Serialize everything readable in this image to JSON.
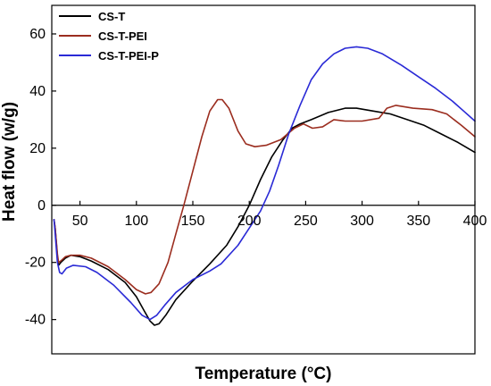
{
  "chart_data": {
    "type": "line",
    "xlabel": "Temperature (°C)",
    "ylabel": "Heat flow (w/g)",
    "xlim": [
      25,
      400
    ],
    "ylim": [
      -52,
      70
    ],
    "x_ticks": [
      50,
      100,
      150,
      200,
      250,
      300,
      350,
      400
    ],
    "y_ticks": [
      -40,
      -20,
      0,
      20,
      40,
      60
    ],
    "legend_position": "top-left",
    "grid": false,
    "series": [
      {
        "name": "CS-T",
        "color": "#000000",
        "points": [
          [
            27,
            -5
          ],
          [
            28,
            -8
          ],
          [
            30,
            -18
          ],
          [
            31,
            -21
          ],
          [
            33,
            -20
          ],
          [
            37,
            -18.5
          ],
          [
            42,
            -17.5
          ],
          [
            50,
            -18
          ],
          [
            60,
            -19.5
          ],
          [
            75,
            -22.5
          ],
          [
            90,
            -27
          ],
          [
            100,
            -32
          ],
          [
            107,
            -37
          ],
          [
            112,
            -40.5
          ],
          [
            116,
            -42
          ],
          [
            120,
            -41.5
          ],
          [
            126,
            -38.5
          ],
          [
            135,
            -33
          ],
          [
            150,
            -26.5
          ],
          [
            165,
            -20.5
          ],
          [
            180,
            -14
          ],
          [
            190,
            -7.5
          ],
          [
            200,
            0
          ],
          [
            210,
            9
          ],
          [
            220,
            17
          ],
          [
            230,
            23
          ],
          [
            238,
            27
          ],
          [
            245,
            28.5
          ],
          [
            255,
            30
          ],
          [
            270,
            32.5
          ],
          [
            285,
            34
          ],
          [
            295,
            34
          ],
          [
            310,
            33
          ],
          [
            325,
            32
          ],
          [
            340,
            30
          ],
          [
            355,
            28
          ],
          [
            370,
            25
          ],
          [
            385,
            22
          ],
          [
            400,
            18.5
          ]
        ]
      },
      {
        "name": "CS-T-PEI",
        "color": "#9b2d1f",
        "points": [
          [
            27,
            -5
          ],
          [
            28,
            -8
          ],
          [
            30,
            -17
          ],
          [
            31,
            -20
          ],
          [
            33,
            -19.5
          ],
          [
            37,
            -18
          ],
          [
            42,
            -17.5
          ],
          [
            50,
            -17.5
          ],
          [
            60,
            -18.5
          ],
          [
            75,
            -21.5
          ],
          [
            90,
            -26
          ],
          [
            100,
            -29.5
          ],
          [
            108,
            -31
          ],
          [
            113,
            -30.5
          ],
          [
            120,
            -27.5
          ],
          [
            128,
            -20
          ],
          [
            135,
            -10
          ],
          [
            142,
            0
          ],
          [
            150,
            12
          ],
          [
            158,
            24
          ],
          [
            165,
            33
          ],
          [
            172,
            37
          ],
          [
            176,
            37
          ],
          [
            182,
            34
          ],
          [
            190,
            26
          ],
          [
            197,
            21.5
          ],
          [
            205,
            20.5
          ],
          [
            215,
            21
          ],
          [
            228,
            23
          ],
          [
            240,
            27
          ],
          [
            248,
            28.5
          ],
          [
            256,
            27
          ],
          [
            265,
            27.5
          ],
          [
            275,
            30
          ],
          [
            285,
            29.5
          ],
          [
            300,
            29.5
          ],
          [
            315,
            30.5
          ],
          [
            322,
            34
          ],
          [
            330,
            35
          ],
          [
            345,
            34
          ],
          [
            362,
            33.5
          ],
          [
            375,
            32
          ],
          [
            388,
            28
          ],
          [
            400,
            24
          ]
        ]
      },
      {
        "name": "CS-T-PEI-P",
        "color": "#2a2ad6",
        "points": [
          [
            27,
            -5
          ],
          [
            28,
            -10
          ],
          [
            30,
            -20
          ],
          [
            32,
            -23.5
          ],
          [
            34,
            -24
          ],
          [
            38,
            -22
          ],
          [
            44,
            -21
          ],
          [
            55,
            -21.5
          ],
          [
            65,
            -23.5
          ],
          [
            80,
            -28
          ],
          [
            95,
            -34
          ],
          [
            105,
            -38.5
          ],
          [
            112,
            -40
          ],
          [
            118,
            -38.5
          ],
          [
            125,
            -35
          ],
          [
            135,
            -30.5
          ],
          [
            150,
            -26
          ],
          [
            165,
            -23
          ],
          [
            175,
            -20.5
          ],
          [
            190,
            -14
          ],
          [
            200,
            -8
          ],
          [
            210,
            -2
          ],
          [
            218,
            5
          ],
          [
            226,
            14
          ],
          [
            235,
            25
          ],
          [
            245,
            35
          ],
          [
            255,
            44
          ],
          [
            265,
            49.5
          ],
          [
            275,
            53
          ],
          [
            285,
            55
          ],
          [
            295,
            55.5
          ],
          [
            305,
            55
          ],
          [
            318,
            53
          ],
          [
            335,
            49
          ],
          [
            350,
            45
          ],
          [
            365,
            41
          ],
          [
            380,
            36.5
          ],
          [
            390,
            33
          ],
          [
            400,
            29.5
          ]
        ]
      }
    ]
  }
}
